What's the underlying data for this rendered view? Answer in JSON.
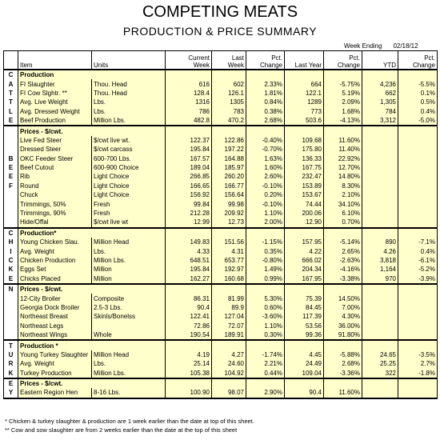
{
  "header": {
    "title": "COMPETING MEATS",
    "subtitle": "PRODUCTION & PRICE SUMMARY",
    "week_ending_label": "Week Ending",
    "week_ending_date": "02/18/12"
  },
  "table": {
    "columns": [
      "Item",
      "Units",
      "Current\nWeek",
      "Last\nWeek",
      "Pct.\nChange",
      "Last Year",
      "Pct.\nChange",
      "YTD",
      "Pct.\nChange"
    ],
    "rows": [
      {
        "side": "C",
        "heading": "Production"
      },
      {
        "side": "A",
        "cells": [
          "FI Slaughter",
          "Thou. Head",
          "616",
          "602",
          "2.33%",
          "664",
          "-5.75%",
          "4,236",
          "-5.5%"
        ]
      },
      {
        "side": "T",
        "cells": [
          "FI Cow Slghtr. **",
          "Thou. Head",
          "128.4",
          "126.1",
          "1.81%",
          "122.1",
          "5.19%",
          "662",
          "0.1%"
        ]
      },
      {
        "side": "T",
        "cells": [
          "Avg. Live Weight",
          "Lbs.",
          "1316",
          "1305",
          "0.84%",
          "1289",
          "2.09%",
          "1,305",
          "0.5%"
        ]
      },
      {
        "side": "L",
        "cells": [
          "Avg. Dressed Weight",
          "Lbs.",
          "786",
          "783",
          "0.38%",
          "773",
          "1.68%",
          "784",
          "0.4%"
        ]
      },
      {
        "side": "E",
        "cells": [
          "Beef Production",
          "Million Lbs.",
          "482.8",
          "470.2",
          "2.68%",
          "503.6",
          "-4.13%",
          "3,312",
          "-5.0%"
        ]
      },
      {
        "heading": "Prices - $/cwt."
      },
      {
        "cells": [
          "Live Fed Steer",
          "$/cwt live wt.",
          "122.37",
          "122.86",
          "-0.40%",
          "109.68",
          "11.60%"
        ]
      },
      {
        "cells": [
          "Dressed Steer",
          "$/cwt carcass",
          "195.84",
          "197.22",
          "-0.70%",
          "175.80",
          "11.40%"
        ]
      },
      {
        "side": "B",
        "cells": [
          "OKC Feeder Steer",
          "600-700 Lbs.",
          "167.57",
          "164.88",
          "1.63%",
          "136.33",
          "22.92%"
        ]
      },
      {
        "side": "E",
        "cells": [
          "Beef Cutout",
          "600-900 Choice",
          "189.04",
          "185.97",
          "1.60%",
          "167.75",
          "12.70%"
        ]
      },
      {
        "side": "E",
        "cells": [
          "Rib",
          "Light Choice",
          "266.85",
          "260.20",
          "2.60%",
          "232.47",
          "14.80%"
        ]
      },
      {
        "side": "F",
        "cells": [
          "Round",
          "Light Choice",
          "166.65",
          "166.77",
          "-0.10%",
          "153.89",
          "8.30%"
        ]
      },
      {
        "cells": [
          "Chuck",
          "Light Choice",
          "156.92",
          "156.64",
          "0.20%",
          "153.67",
          "2.10%"
        ]
      },
      {
        "cells": [
          "Trimmings, 50%",
          "Fresh",
          "99.84",
          "99.98",
          "-0.10%",
          "74.44",
          "34.10%"
        ]
      },
      {
        "cells": [
          "Trimmings, 90%",
          "Fresh",
          "212.28",
          "209.92",
          "1.10%",
          "200.06",
          "6.10%"
        ]
      },
      {
        "cells": [
          "Hide/Offal",
          "$/cwt live wt",
          "12.99",
          "12.73",
          "2.00%",
          "12.90",
          "0.70%"
        ]
      },
      {
        "side": "C",
        "heading": "Production*"
      },
      {
        "side": "H",
        "cells": [
          "Young Chicken Slau.",
          "Million Head",
          "149.83",
          "151.56",
          "-1.15%",
          "157.95",
          "-5.14%",
          "890",
          "-7.1%"
        ]
      },
      {
        "side": "I",
        "cells": [
          "Avg. Weight",
          "Lbs.",
          "4.33",
          "4.31",
          "0.35%",
          "4.22",
          "2.65%",
          "4.26",
          "0.4%"
        ]
      },
      {
        "side": "C",
        "cells": [
          "Chicken Production",
          "Million Lbs.",
          "648.51",
          "653.77",
          "-0.80%",
          "666.02",
          "-2.63%",
          "3,818",
          "-6.1%"
        ]
      },
      {
        "side": "K",
        "cells": [
          "Eggs Set",
          "Million",
          "195.84",
          "192.97",
          "1.49%",
          "204.34",
          "-4.16%",
          "1,164",
          "-5.2%"
        ]
      },
      {
        "side": "E",
        "cells": [
          "Chicks Placed",
          "Million",
          "162.27",
          "160.68",
          "0.99%",
          "167.95",
          "-3.38%",
          "970",
          "-3.9%"
        ]
      },
      {
        "side": "N",
        "heading": "Prices - $/cwt."
      },
      {
        "cells": [
          "12-City Broiler",
          "Composite",
          "86.31",
          "81.99",
          "5.30%",
          "75.39",
          "14.50%"
        ]
      },
      {
        "cells": [
          "Georgia Dock Broiler",
          "2.5-3 Lbs.",
          "90.4",
          "89.9",
          "0.60%",
          "84.45",
          "7.00%"
        ]
      },
      {
        "cells": [
          "Northeast Breast",
          "Skinls/Bonelss",
          "122.41",
          "127.04",
          "-3.60%",
          "117.39",
          "4.30%"
        ]
      },
      {
        "cells": [
          "Northeast Legs",
          null,
          "72.86",
          "72.07",
          "1.10%",
          "53.56",
          "36.00%"
        ]
      },
      {
        "cells": [
          "Northeast Wings",
          "Whole",
          "190.54",
          "189.91",
          "0.30%",
          "99.36",
          "91.80%"
        ]
      },
      {
        "side": "T",
        "heading": "Production *"
      },
      {
        "side": "U",
        "cells": [
          "Young Turkey Slaughter",
          "Million Head",
          "4.19",
          "4.27",
          "-1.74%",
          "4.45",
          "-5.88%",
          "24.65",
          "-3.5%"
        ]
      },
      {
        "side": "R",
        "cells": [
          "Avg. Weight",
          "Lbs.",
          "25.14",
          "24.60",
          "2.21%",
          "24.49",
          "2.68%",
          "25.25",
          "2.7%"
        ]
      },
      {
        "side": "K",
        "cells": [
          "Turkey Production",
          "Million Lbs.",
          "105.38",
          "104.92",
          "0.44%",
          "109.04",
          "-3.36%",
          "322",
          "-1.8%"
        ]
      },
      {
        "side": "E",
        "heading": "Prices - $/cwt."
      },
      {
        "side": "Y",
        "cells": [
          "Eastern Region Hen",
          "8-16 Lbs.",
          "100.90",
          "98.07",
          "2.90%",
          "90.4",
          "11.60%"
        ]
      }
    ]
  },
  "footnotes": [
    "* Chicken & turkey slaughter & production are 1 week earlier than the date at top of this sheet.",
    "** Cow and sow slaughter are from 2 weeks earlier than the date at the top of this sheet"
  ]
}
